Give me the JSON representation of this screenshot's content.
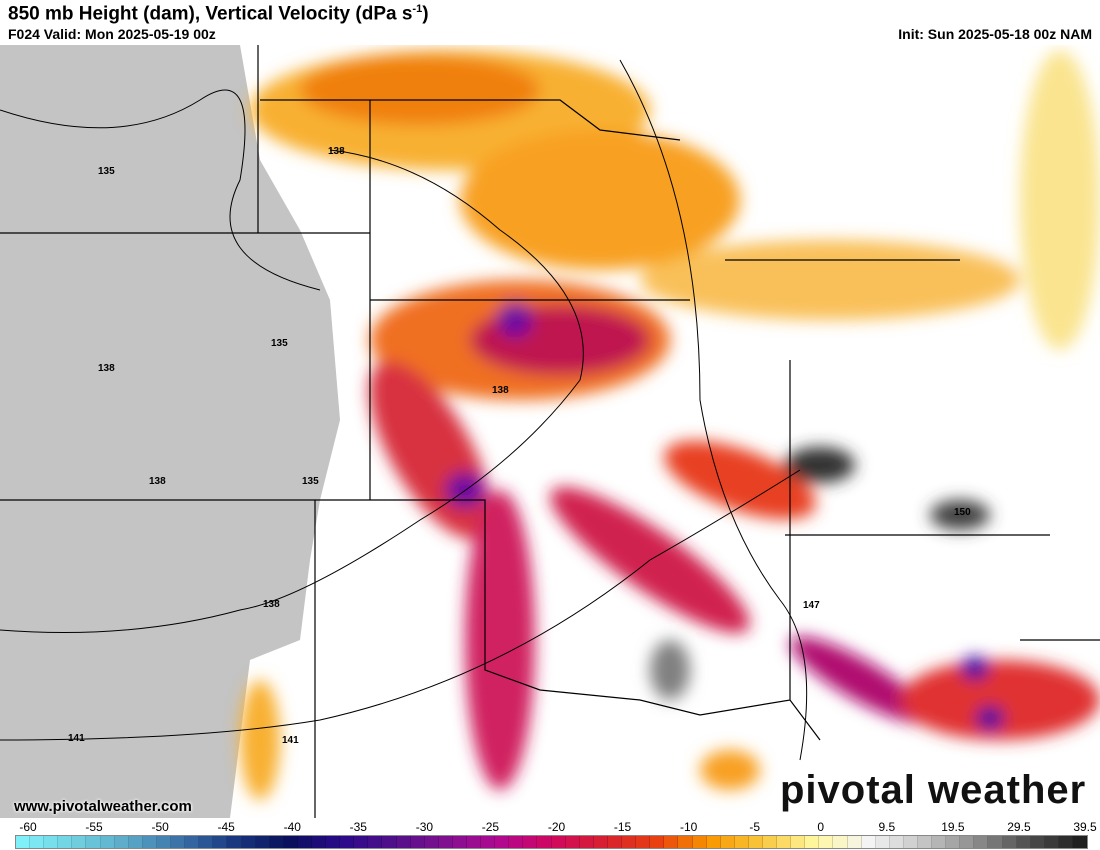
{
  "header": {
    "title": "850 mb Height (dam), Vertical Velocity (dPa s",
    "title_sup": "-1",
    "title_end": ")",
    "valid": "F024 Valid: Mon 2025-05-19 00z",
    "init": "Init: Sun 2025-05-18 00z NAM"
  },
  "contour_labels": [
    "135",
    "138",
    "135",
    "138",
    "138",
    "138",
    "135",
    "138",
    "141",
    "141",
    "147",
    "150"
  ],
  "website": "www.pivotalweather.com",
  "logo": "pivotal weather",
  "colorbar": {
    "ticks": [
      "-60",
      "-55",
      "-50",
      "-45",
      "-40",
      "-35",
      "-30",
      "-25",
      "-20",
      "-15",
      "-10",
      "-5",
      "0",
      "9.5",
      "19.5",
      "29.5",
      "39.5"
    ],
    "colors": [
      "#80f0f8",
      "#70d0e0",
      "#5aa8c8",
      "#3a70a8",
      "#1a3880",
      "#08105a",
      "#280a8a",
      "#50108a",
      "#801090",
      "#b00890",
      "#d00860",
      "#d82030",
      "#e84010",
      "#f89800",
      "#f8c840",
      "#fff8a0",
      "#f4f4f4",
      "#c8c8c8",
      "#909090",
      "#505050",
      "#202020"
    ]
  }
}
